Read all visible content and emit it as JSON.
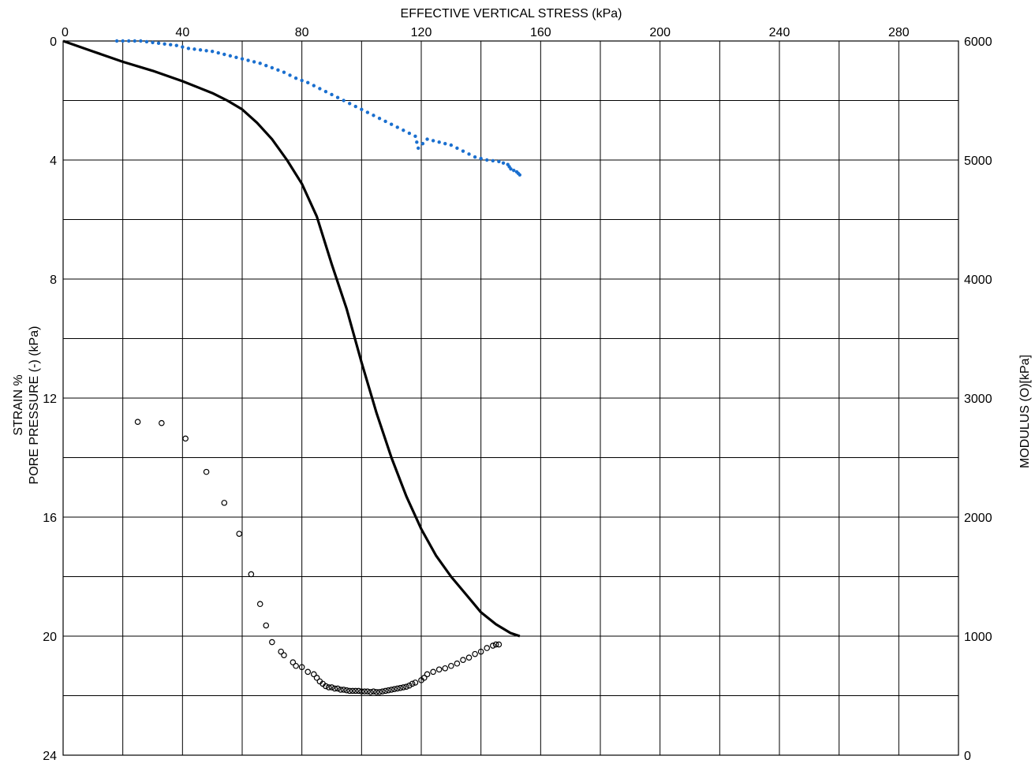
{
  "chart_data": {
    "type": "line",
    "title": "EFFECTIVE VERTICAL STRESS (kPa)",
    "xlabel": "EFFECTIVE VERTICAL STRESS (kPa)",
    "ylabel_left_line1": "STRAIN %",
    "ylabel_left_line2": "PORE PRESSURE (-) (kPa)",
    "ylabel_right": "MODULUS (O)[kPa]",
    "x_ticks": [
      "0",
      "40",
      "80",
      "120",
      "160",
      "200",
      "240",
      "280"
    ],
    "y_left_ticks": [
      "0",
      "4",
      "8",
      "12",
      "16",
      "20",
      "24"
    ],
    "y_right_ticks": [
      "6000",
      "5000",
      "4000",
      "3000",
      "2000",
      "1000",
      "0"
    ],
    "xlim": [
      0,
      300
    ],
    "ylim_left": [
      0,
      24
    ],
    "ylim_right": [
      0,
      6000
    ],
    "grid": true,
    "colors": {
      "strain": "#000000",
      "pore_pressure": "#1a6fcf",
      "modulus": "#000000",
      "grid": "#000000"
    },
    "series": [
      {
        "key": "strain",
        "style": "solid-line",
        "axis": "left",
        "x": [
          0,
          10,
          20,
          30,
          40,
          50,
          55,
          60,
          65,
          70,
          75,
          80,
          85,
          90,
          95,
          100,
          105,
          110,
          115,
          120,
          125,
          130,
          135,
          140,
          145,
          150,
          153
        ],
        "y": [
          0,
          0.35,
          0.7,
          1.0,
          1.35,
          1.75,
          2.0,
          2.3,
          2.75,
          3.3,
          4.0,
          4.8,
          5.9,
          7.5,
          9.0,
          10.8,
          12.5,
          14.0,
          15.3,
          16.4,
          17.3,
          18.0,
          18.6,
          19.2,
          19.6,
          19.9,
          20.0
        ]
      },
      {
        "key": "pore_pressure",
        "style": "dotted",
        "axis": "left",
        "x": [
          18,
          22,
          26,
          30,
          34,
          38,
          42,
          46,
          50,
          54,
          58,
          62,
          66,
          70,
          74,
          78,
          82,
          86,
          90,
          94,
          98,
          102,
          106,
          110,
          114,
          118,
          119,
          122,
          126,
          130,
          134,
          138,
          142,
          146,
          149,
          150,
          152,
          153
        ],
        "y": [
          0,
          0,
          0,
          0.05,
          0.1,
          0.15,
          0.25,
          0.3,
          0.35,
          0.45,
          0.55,
          0.65,
          0.75,
          0.9,
          1.05,
          1.25,
          1.4,
          1.6,
          1.8,
          2.0,
          2.2,
          2.4,
          2.6,
          2.8,
          3.0,
          3.2,
          3.6,
          3.3,
          3.4,
          3.5,
          3.7,
          3.9,
          4.0,
          4.05,
          4.15,
          4.3,
          4.4,
          4.5
        ]
      },
      {
        "key": "modulus",
        "style": "open-circles",
        "axis": "right",
        "x": [
          25,
          33,
          41,
          48,
          54,
          59,
          63,
          66,
          68,
          70,
          73,
          74,
          77,
          78,
          80,
          82,
          84,
          85,
          86,
          87,
          88,
          89,
          90,
          91,
          92,
          93,
          94,
          95,
          96,
          97,
          98,
          99,
          100,
          101,
          102,
          103,
          104,
          105,
          106,
          107,
          108,
          109,
          110,
          111,
          112,
          113,
          114,
          115,
          116,
          117,
          118,
          120,
          121,
          122,
          124,
          126,
          128,
          130,
          132,
          134,
          136,
          138,
          140,
          142,
          144,
          145,
          146
        ],
        "y": [
          2800,
          2790,
          2660,
          2380,
          2120,
          1860,
          1520,
          1270,
          1090,
          950,
          870,
          840,
          780,
          750,
          740,
          700,
          680,
          650,
          620,
          600,
          580,
          570,
          570,
          560,
          560,
          550,
          550,
          545,
          540,
          540,
          540,
          540,
          535,
          535,
          535,
          530,
          535,
          530,
          530,
          535,
          540,
          545,
          550,
          555,
          560,
          565,
          570,
          575,
          585,
          600,
          610,
          630,
          650,
          680,
          700,
          720,
          730,
          750,
          770,
          800,
          820,
          850,
          870,
          900,
          920,
          930,
          930
        ]
      }
    ]
  }
}
